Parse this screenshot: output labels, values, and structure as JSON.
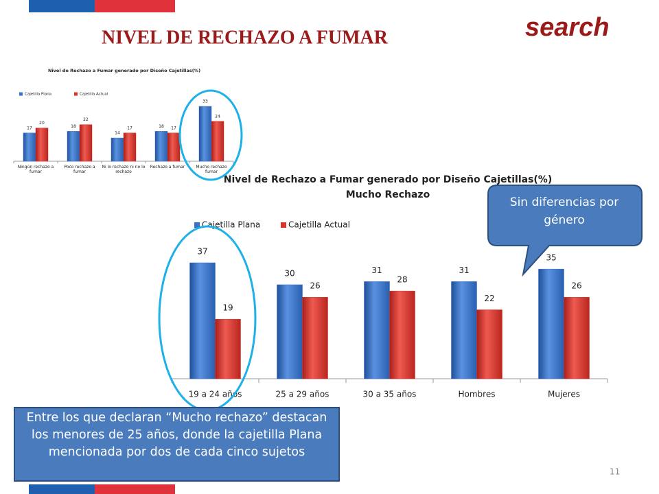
{
  "slide": {
    "title": "NIVEL DE RECHAZO A FUMAR",
    "brand": "search",
    "callout": "Sin diferencias por género",
    "note": "Entre los que declaran “Mucho rechazo” destacan los menores de 25 años, donde la cajetilla Plana mencionada por dos de cada cinco sujetos",
    "page_number": "11"
  },
  "chart_data": [
    {
      "type": "bar",
      "title": "Nivel de Rechazo a Fumar generado por Diseño Cajetillas(%)",
      "categories": [
        "Ningún rechazo a fumar",
        "Poco rechazo a fumar",
        "Ni lo rechazo ni no lo rechazo",
        "Rechazo a fumar",
        "Mucho rechazo fumar"
      ],
      "series": [
        {
          "name": "Cajetilla Plana",
          "color": "#3a72c8",
          "values": [
            17,
            18,
            14,
            18,
            33
          ]
        },
        {
          "name": "Cajetilla Actual",
          "color": "#d9342b",
          "values": [
            20,
            22,
            17,
            17,
            24
          ]
        }
      ]
    },
    {
      "type": "bar",
      "title": "Nivel de Rechazo a Fumar generado por Diseño Cajetillas(%)",
      "subtitle": "Mucho Rechazo",
      "categories": [
        "19 a 24 años",
        "25 a 29 años",
        "30 a 35 años",
        "Hombres",
        "Mujeres"
      ],
      "series": [
        {
          "name": "Cajetilla Plana",
          "color": "#3a72c8",
          "values": [
            37,
            30,
            31,
            31,
            35
          ]
        },
        {
          "name": "Cajetilla Actual",
          "color": "#d9342b",
          "values": [
            19,
            26,
            28,
            22,
            26
          ]
        }
      ]
    }
  ]
}
